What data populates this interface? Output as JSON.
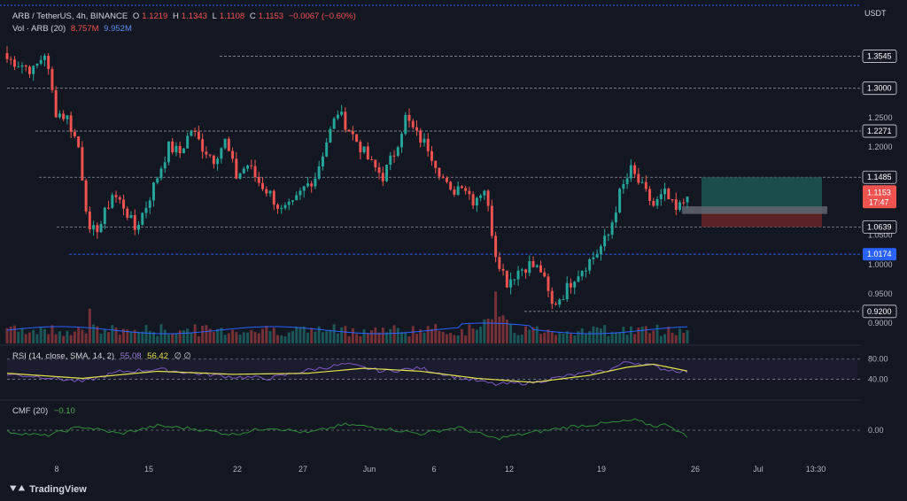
{
  "header": {
    "symbol": "ARB / TetherUS, 4h, BINANCE",
    "open_label": "O",
    "open": "1.1219",
    "high_label": "H",
    "high": "1.1343",
    "low_label": "L",
    "low": "1.1108",
    "close_label": "C",
    "close": "1.1153",
    "change": "−0.0067 (−0.60%)",
    "vol_label": "Vol · ARB (20)",
    "vol_value": "8.757M",
    "vol_ma": "9.952M",
    "currency": "USDT"
  },
  "colors": {
    "background": "#131722",
    "up": "#26a69a",
    "down": "#ef5350",
    "rsi_line": "#7e57c2",
    "rsi_ma": "#e6e24a",
    "cmf_line": "#2e8b3a",
    "vol_ma": "#2962ff",
    "level_line": "#b2b5be",
    "support_line": "#2962ff",
    "target_zone": "#1b4d4a",
    "stop_zone": "#5a2426",
    "entry_zone": "#5d606b"
  },
  "rsi": {
    "label": "RSI (14, close, SMA, 14, 2)",
    "value": "55.08",
    "ma": "56.42",
    "empty": "∅ ∅",
    "levels": [
      "80.00",
      "40.00"
    ]
  },
  "cmf": {
    "label": "CMF (20)",
    "value": "−0.10",
    "level": "0.00"
  },
  "price_axis": {
    "ticks": [
      "1.2500",
      "1.2000",
      "1.0500",
      "1.0000",
      "0.9500",
      "0.9000"
    ],
    "tagged": [
      {
        "label": "1.3545",
        "style": "box"
      },
      {
        "label": "1.3000",
        "style": "box"
      },
      {
        "label": "1.2271",
        "style": "box"
      },
      {
        "label": "1.1485",
        "style": "box"
      },
      {
        "label": "1.0639",
        "style": "box"
      },
      {
        "label": "1.0174",
        "style": "blue"
      },
      {
        "label": "0.9200",
        "style": "box"
      }
    ],
    "current_price": "1.1153",
    "countdown": "17:47"
  },
  "time_axis": {
    "labels": [
      "8",
      "15",
      "22",
      "27",
      "Jun",
      "6",
      "12",
      "19",
      "26",
      "Jul",
      "13:30"
    ]
  },
  "chart_data": {
    "type": "candlestick",
    "symbol": "ARB / TetherUS",
    "timeframe": "4h",
    "ylim": [
      0.87,
      1.39
    ],
    "horizontal_levels": [
      1.3545,
      1.3,
      1.2271,
      1.1485,
      1.0639,
      1.0174,
      0.92
    ],
    "position_tool": {
      "target": 1.1485,
      "entry": 1.09,
      "stop": 1.0639
    },
    "close_path": [
      [
        0,
        1.35
      ],
      [
        4,
        1.34
      ],
      [
        7,
        1.33
      ],
      [
        10,
        1.36
      ],
      [
        13,
        1.26
      ],
      [
        16,
        1.25
      ],
      [
        19,
        1.2
      ],
      [
        22,
        1.05
      ],
      [
        25,
        1.07
      ],
      [
        28,
        1.12
      ],
      [
        31,
        1.1
      ],
      [
        34,
        1.06
      ],
      [
        37,
        1.1
      ],
      [
        40,
        1.15
      ],
      [
        43,
        1.2
      ],
      [
        46,
        1.19
      ],
      [
        49,
        1.23
      ],
      [
        52,
        1.2
      ],
      [
        55,
        1.18
      ],
      [
        58,
        1.21
      ],
      [
        61,
        1.15
      ],
      [
        64,
        1.17
      ],
      [
        67,
        1.14
      ],
      [
        70,
        1.12
      ],
      [
        73,
        1.09
      ],
      [
        76,
        1.1
      ],
      [
        79,
        1.13
      ],
      [
        82,
        1.15
      ],
      [
        85,
        1.21
      ],
      [
        88,
        1.26
      ],
      [
        91,
        1.23
      ],
      [
        94,
        1.2
      ],
      [
        97,
        1.17
      ],
      [
        100,
        1.15
      ],
      [
        103,
        1.19
      ],
      [
        106,
        1.25
      ],
      [
        109,
        1.22
      ],
      [
        112,
        1.2
      ],
      [
        115,
        1.16
      ],
      [
        118,
        1.12
      ],
      [
        121,
        1.14
      ],
      [
        124,
        1.11
      ],
      [
        127,
        1.13
      ],
      [
        130,
        1.02
      ],
      [
        133,
        0.97
      ],
      [
        136,
        0.99
      ],
      [
        139,
        1.0
      ],
      [
        142,
        0.99
      ],
      [
        145,
        0.93
      ],
      [
        148,
        0.95
      ],
      [
        151,
        0.98
      ],
      [
        154,
        1.0
      ],
      [
        157,
        1.02
      ],
      [
        160,
        1.05
      ],
      [
        163,
        1.12
      ],
      [
        166,
        1.16
      ],
      [
        169,
        1.13
      ],
      [
        172,
        1.1
      ],
      [
        175,
        1.12
      ],
      [
        178,
        1.09
      ],
      [
        181,
        1.1153
      ]
    ],
    "rsi_range": [
      20,
      90
    ],
    "rsi_path": [
      [
        0,
        50
      ],
      [
        10,
        45
      ],
      [
        20,
        35
      ],
      [
        30,
        55
      ],
      [
        40,
        60
      ],
      [
        50,
        52
      ],
      [
        60,
        45
      ],
      [
        70,
        42
      ],
      [
        80,
        58
      ],
      [
        90,
        70
      ],
      [
        100,
        56
      ],
      [
        110,
        62
      ],
      [
        120,
        44
      ],
      [
        130,
        30
      ],
      [
        140,
        34
      ],
      [
        150,
        48
      ],
      [
        160,
        58
      ],
      [
        165,
        75
      ],
      [
        170,
        70
      ],
      [
        175,
        60
      ],
      [
        181,
        55.08
      ]
    ],
    "rsi_ma_path": [
      [
        0,
        52
      ],
      [
        20,
        42
      ],
      [
        40,
        56
      ],
      [
        60,
        50
      ],
      [
        80,
        52
      ],
      [
        95,
        62
      ],
      [
        110,
        56
      ],
      [
        125,
        42
      ],
      [
        140,
        34
      ],
      [
        155,
        48
      ],
      [
        165,
        64
      ],
      [
        172,
        70
      ],
      [
        181,
        56.42
      ]
    ],
    "cmf_range": [
      -0.3,
      0.3
    ],
    "cmf_path": [
      [
        0,
        -0.02
      ],
      [
        10,
        -0.08
      ],
      [
        20,
        0.05
      ],
      [
        30,
        -0.05
      ],
      [
        40,
        0.06
      ],
      [
        50,
        0.02
      ],
      [
        60,
        -0.06
      ],
      [
        70,
        0.04
      ],
      [
        80,
        -0.04
      ],
      [
        90,
        0.08
      ],
      [
        100,
        0.03
      ],
      [
        110,
        -0.05
      ],
      [
        120,
        0.04
      ],
      [
        130,
        -0.12
      ],
      [
        140,
        -0.03
      ],
      [
        150,
        0.05
      ],
      [
        160,
        0.1
      ],
      [
        167,
        0.14
      ],
      [
        172,
        0.06
      ],
      [
        176,
        0.08
      ],
      [
        181,
        -0.1
      ]
    ]
  }
}
